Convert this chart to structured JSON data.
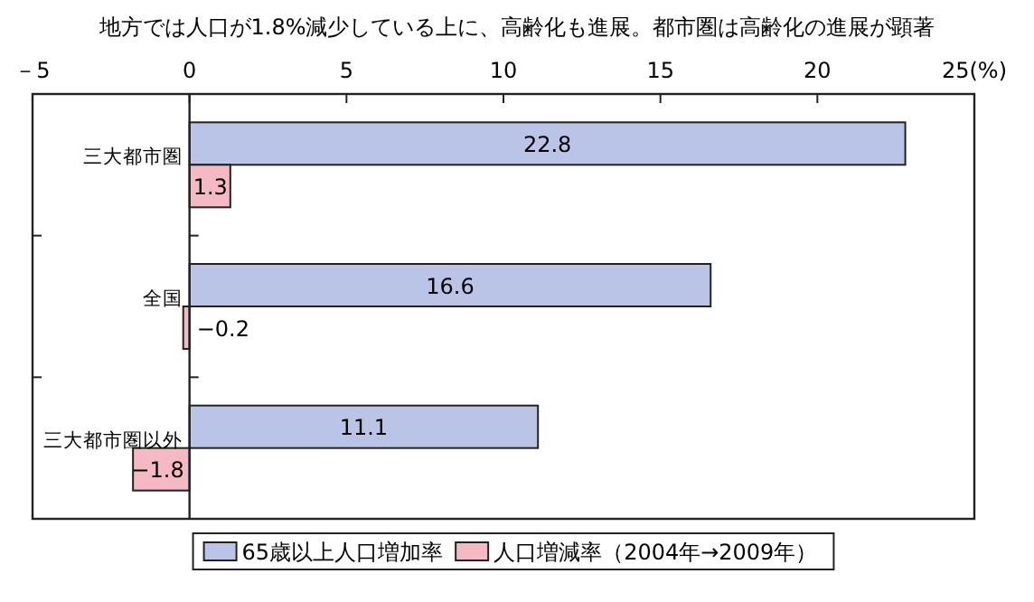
{
  "chart_data": {
    "type": "bar",
    "orientation": "horizontal",
    "title": "地方では人口が1.8%減少している上に、高齢化も進展。都市圏は高齢化の進展が顕著",
    "categories": [
      "三大都市圏",
      "全国",
      "三大都市圏以外"
    ],
    "series": [
      {
        "name": "65歳以上人口増加率",
        "color": "#bac4e6",
        "values": [
          22.8,
          16.6,
          11.1
        ],
        "value_labels": [
          "22.8",
          "16.6",
          "11.1"
        ]
      },
      {
        "name": "人口増減率（2004年→2009年）",
        "color": "#f4b9c3",
        "values": [
          1.3,
          -0.2,
          -1.8
        ],
        "value_labels": [
          "1.3",
          "−0.2",
          "−1.8"
        ]
      }
    ],
    "xlim": [
      -5,
      25
    ],
    "xticks": [
      {
        "value": -5,
        "label": "－5"
      },
      0,
      5,
      10,
      15,
      20,
      {
        "value": 25,
        "label": "25(%)"
      }
    ],
    "grid": false,
    "legend": "bottom"
  }
}
